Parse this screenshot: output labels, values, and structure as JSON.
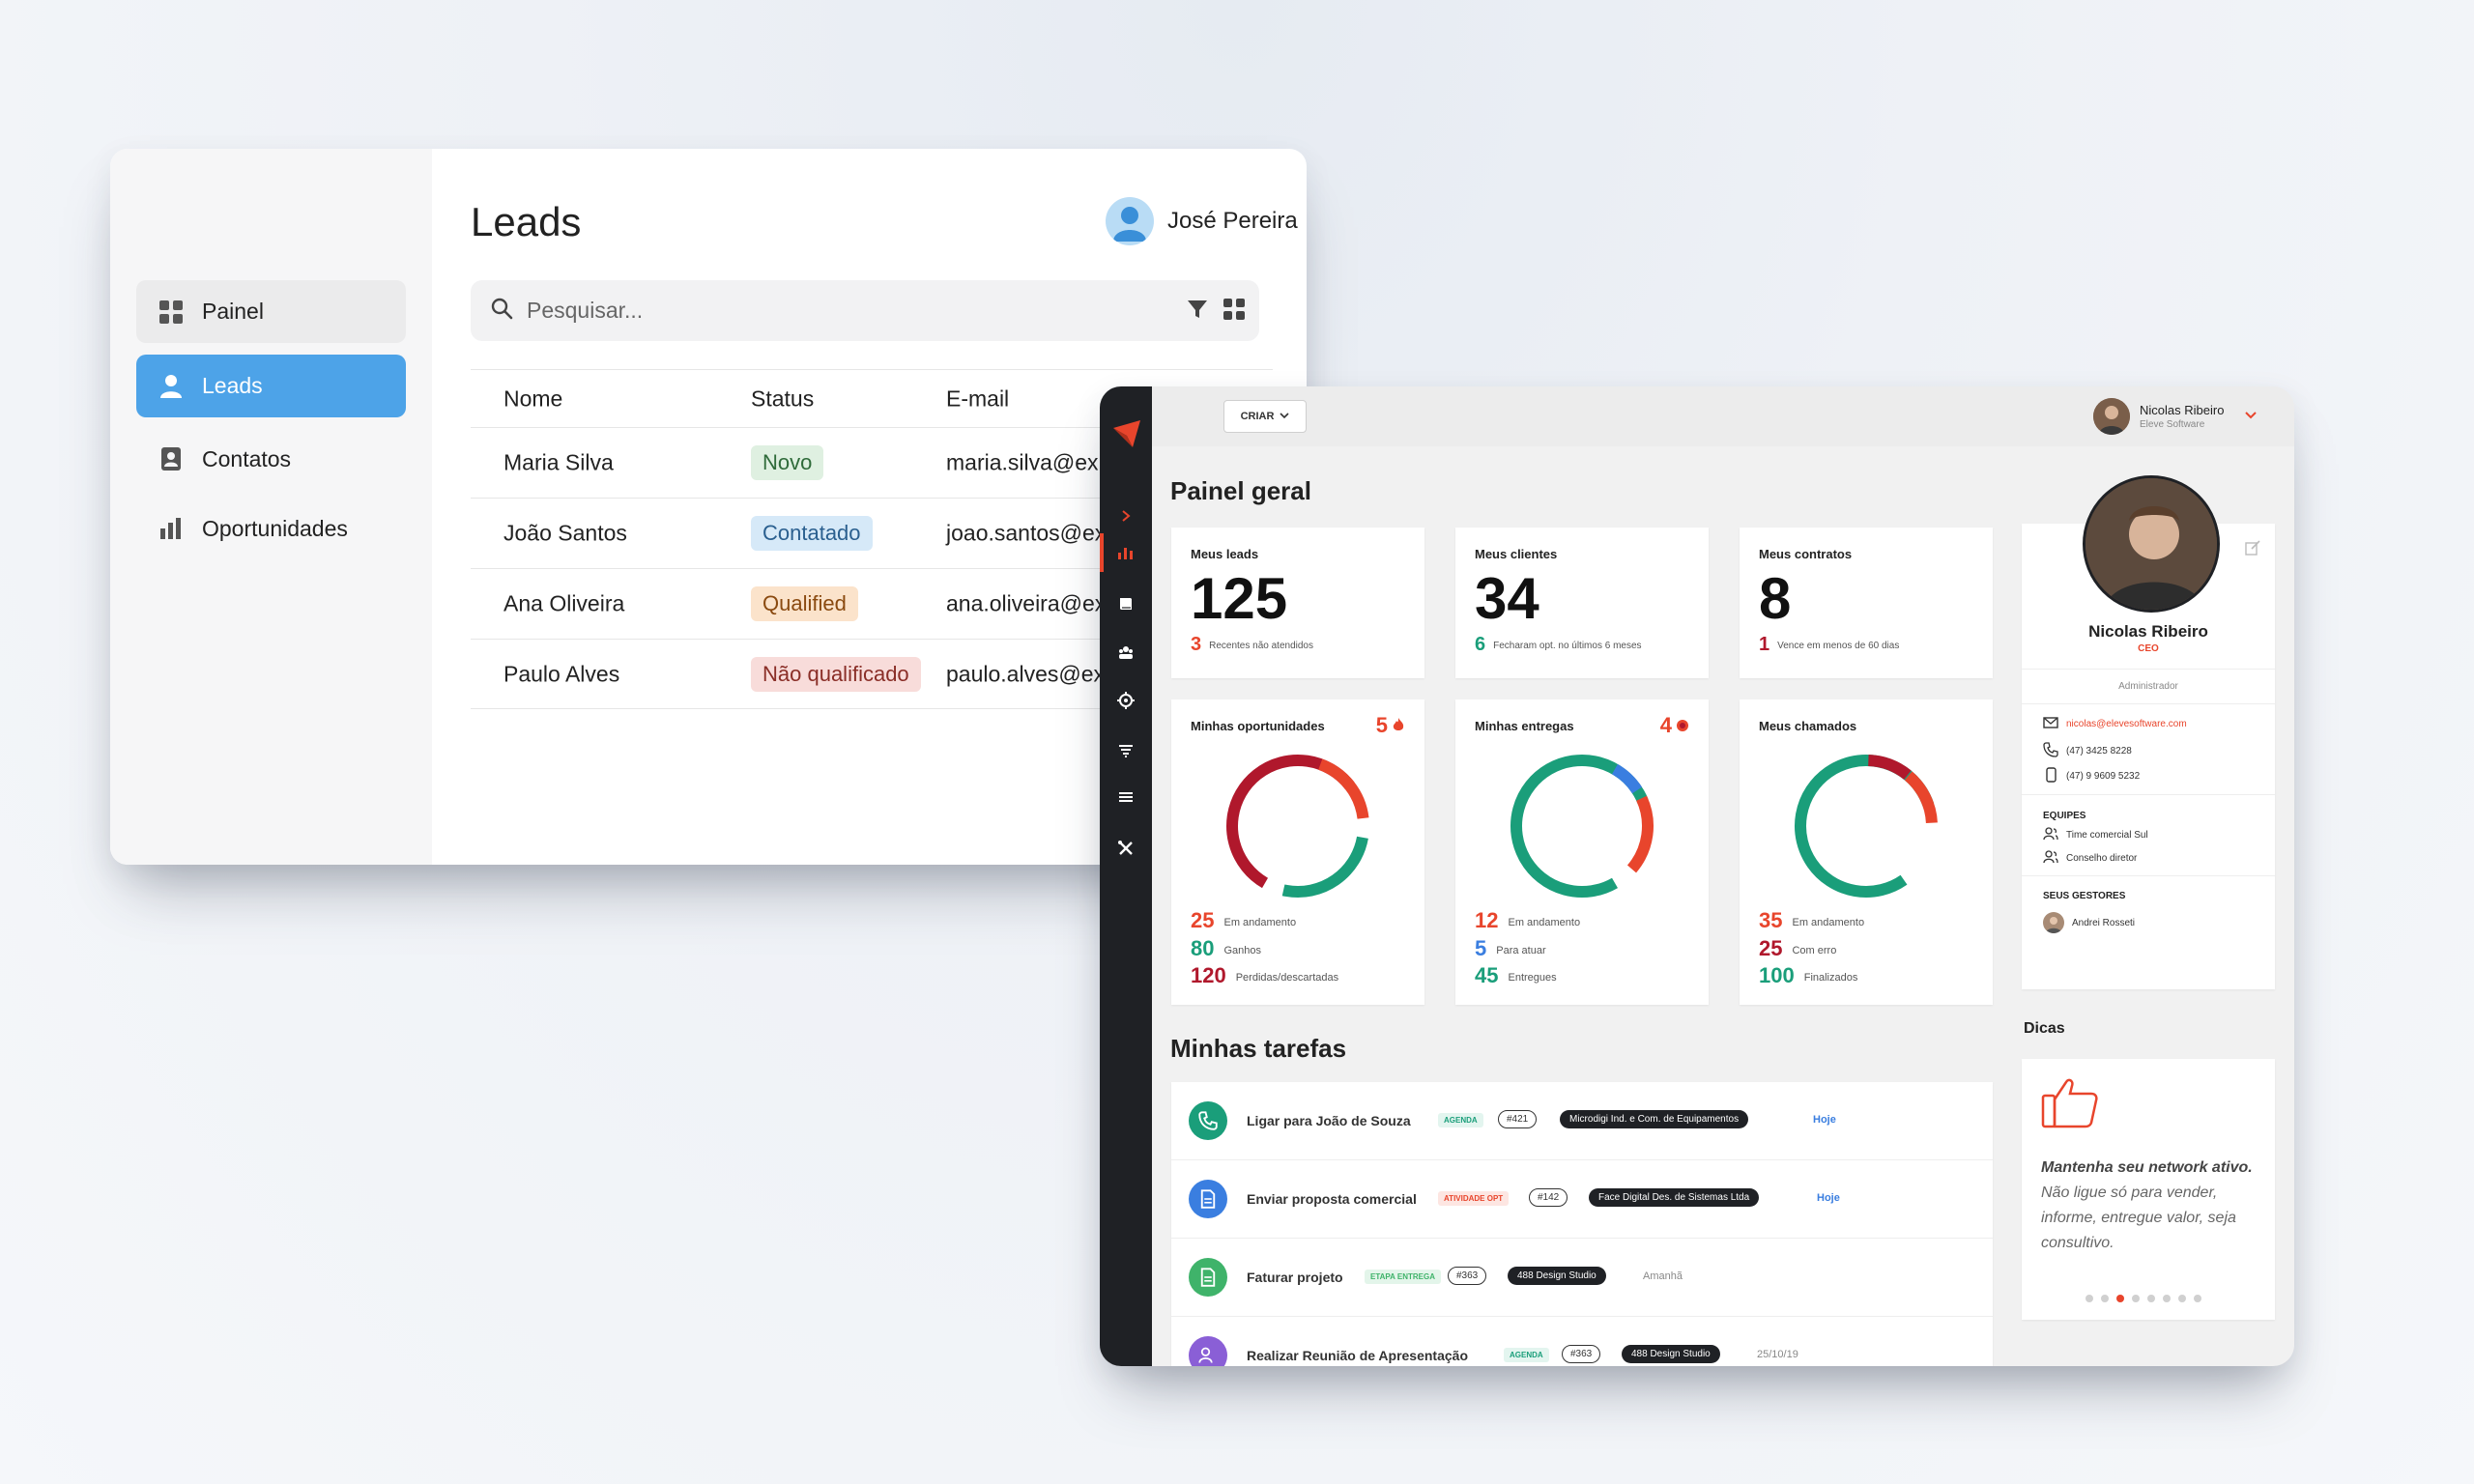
{
  "leads": {
    "title": "Leads",
    "user_name": "José Pereira",
    "search_placeholder": "Pesquisar...",
    "sidebar": [
      {
        "label": "Painel",
        "icon": "grid-icon"
      },
      {
        "label": "Leads",
        "icon": "person-icon",
        "active": true
      },
      {
        "label": "Contatos",
        "icon": "contact-card-icon"
      },
      {
        "label": "Oportunidades",
        "icon": "bar-chart-icon"
      }
    ],
    "columns": [
      "Nome",
      "Status",
      "E-mail"
    ],
    "rows": [
      {
        "name": "Maria Silva",
        "status": "Novo",
        "email": "maria.silva@ex"
      },
      {
        "name": "João Santos",
        "status": "Contatado",
        "email": "joao.santos@ex"
      },
      {
        "name": "Ana Oliveira",
        "status": "Qualified",
        "email": "ana.oliveira@ex"
      },
      {
        "name": "Paulo Alves",
        "status": "Não qualificado",
        "email": "paulo.alves@ex"
      }
    ]
  },
  "dashboard": {
    "criar_label": "CRIAR",
    "user_name": "Nicolas Ribeiro",
    "user_company": "Eleve Software",
    "title": "Painel geral",
    "stats": [
      {
        "label": "Meus leads",
        "value": "125",
        "sub_value": "3",
        "sub_text": "Recentes não atendidos"
      },
      {
        "label": "Meus clientes",
        "value": "34",
        "sub_value": "6",
        "sub_text": "Fecharam opt. no últimos 6 meses"
      },
      {
        "label": "Meus contratos",
        "value": "8",
        "sub_value": "1",
        "sub_text": "Vence em menos de 60 dias"
      }
    ],
    "donuts": [
      {
        "label": "Minhas oportunidades",
        "count": "5",
        "legend": [
          {
            "value": "25",
            "text": "Em andamento"
          },
          {
            "value": "80",
            "text": "Ganhos"
          },
          {
            "value": "120",
            "text": "Perdidas/descartadas"
          }
        ]
      },
      {
        "label": "Minhas entregas",
        "count": "4",
        "legend": [
          {
            "value": "12",
            "text": "Em andamento"
          },
          {
            "value": "5",
            "text": "Para atuar"
          },
          {
            "value": "45",
            "text": "Entregues"
          }
        ]
      },
      {
        "label": "Meus chamados",
        "count": "",
        "legend": [
          {
            "value": "35",
            "text": "Em andamento"
          },
          {
            "value": "25",
            "text": "Com erro"
          },
          {
            "value": "100",
            "text": "Finalizados"
          }
        ]
      }
    ],
    "profile": {
      "name": "Nicolas Ribeiro",
      "role": "CEO",
      "access": "Administrador",
      "email": "nicolas@elevesoftware.com",
      "phone": "(47) 3425 8228",
      "mobile": "(47) 9 9609 5232",
      "teams_title": "EQUIPES",
      "teams": [
        "Time comercial Sul",
        "Conselho diretor"
      ],
      "managers_title": "SEUS GESTORES",
      "manager": "Andrei Rosseti"
    },
    "tips": {
      "title": "Dicas",
      "text_bold": "Mantenha seu network ativo.",
      "text": " Não ligue só para vender, informe, entregue valor, seja consultivo."
    },
    "tasks_title": "Minhas tarefas",
    "tasks": [
      {
        "title": "Ligar para João de Souza",
        "tag": "AGENDA",
        "num": "#421",
        "company": "Microdigi Ind. e Com. de Equipamentos",
        "date": "Hoje"
      },
      {
        "title": "Enviar proposta comercial",
        "tag": "ATIVIDADE OPT",
        "num": "#142",
        "company": "Face Digital Des. de Sistemas Ltda",
        "date": "Hoje"
      },
      {
        "title": "Faturar projeto",
        "tag": "ETAPA ENTREGA",
        "num": "#363",
        "company": "488 Design Studio",
        "date": "Amanhã"
      },
      {
        "title": "Realizar Reunião de Apresentação",
        "tag": "AGENDA",
        "num": "#363",
        "company": "488 Design Studio",
        "date": "25/10/19"
      }
    ],
    "colors": {
      "red": "#e8452c",
      "green": "#1a9e7a",
      "dark_red": "#b0182c",
      "blue": "#3a7ee0"
    }
  }
}
